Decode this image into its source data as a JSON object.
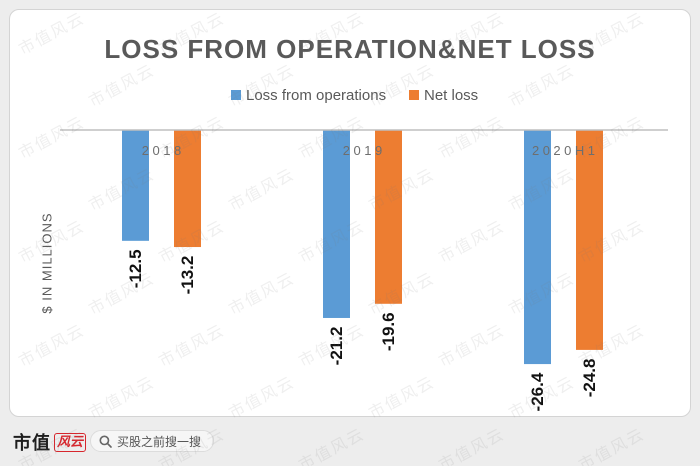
{
  "chart_data": {
    "type": "bar",
    "title": "LOSS FROM OPERATION&NET LOSS",
    "ylabel": "$ IN MILLIONS",
    "categories": [
      "2018",
      "2019",
      "2020H1"
    ],
    "series": [
      {
        "name": "Loss from operations",
        "values": [
          -12.5,
          -21.2,
          -26.4
        ],
        "color": "#5b9bd5"
      },
      {
        "name": "Net loss",
        "values": [
          -13.2,
          -19.6,
          -24.8
        ],
        "color": "#ed7d31"
      }
    ],
    "ylim": [
      -30,
      0
    ],
    "legend": "top",
    "grid": false,
    "data_labels": true
  },
  "watermark": {
    "text": "市值风云"
  },
  "footer": {
    "logo": {
      "black_text": "市值",
      "red_text": "风云",
      "brand_red": "#d7262d"
    },
    "search": {
      "placeholder": "买股之前搜一搜",
      "icon": "search-icon"
    }
  }
}
